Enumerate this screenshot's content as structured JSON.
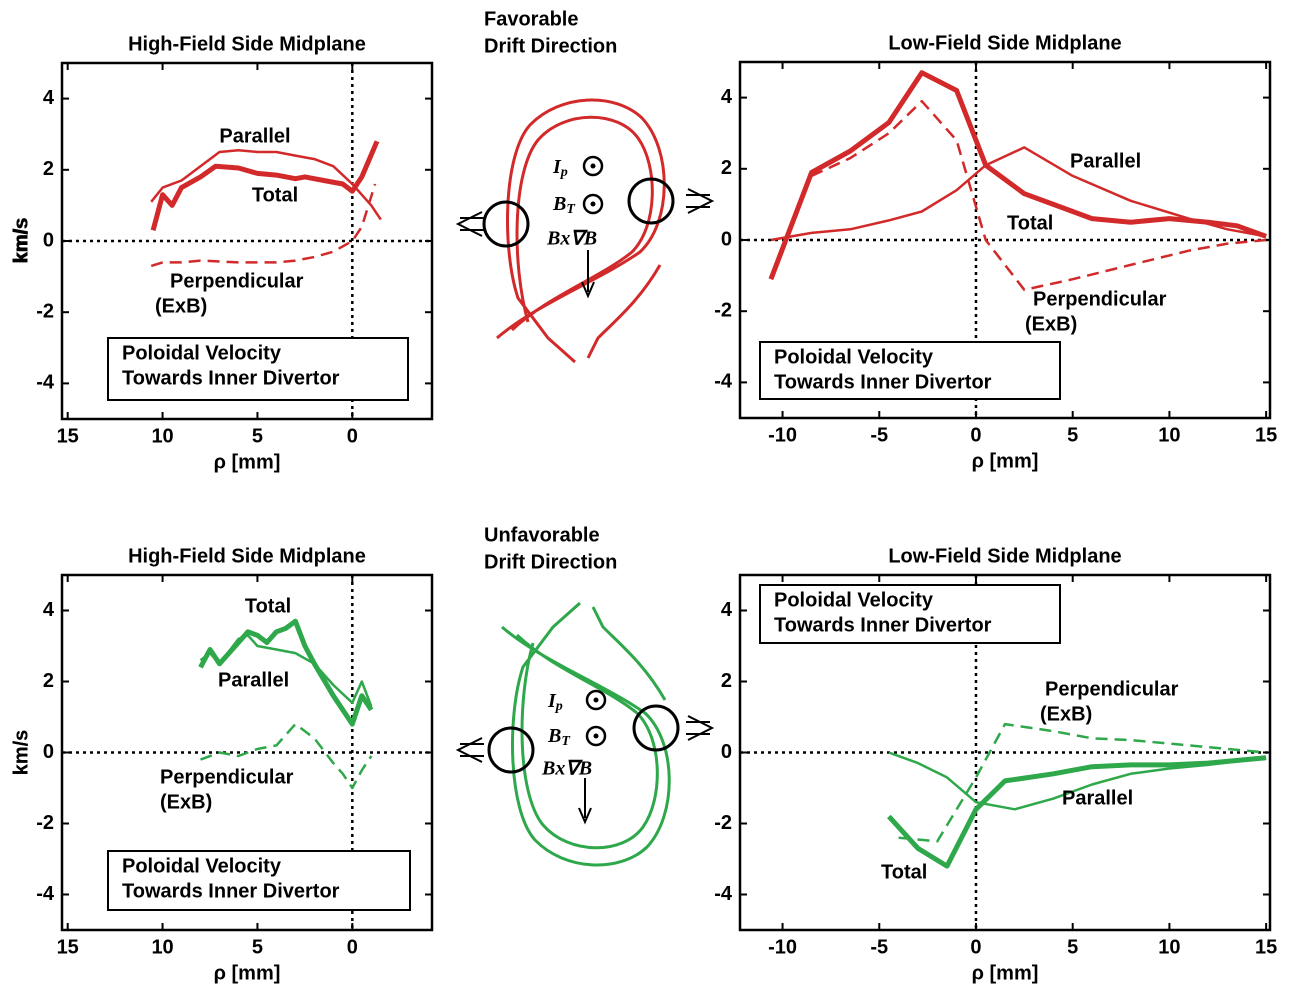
{
  "chart_data": [
    {
      "type": "line",
      "title": "High-Field Side Midplane",
      "xlabel": "ρ [mm]",
      "ylabel": "km/s",
      "xlim": [
        15.3,
        -4.2
      ],
      "ylim": [
        -5,
        5
      ],
      "xticks": [
        15,
        10,
        5,
        0
      ],
      "yticks": [
        -4,
        -2,
        0,
        2,
        4
      ],
      "zero_lines": true,
      "box": [
        "Poloidal Velocity",
        "Towards Inner Divertor"
      ],
      "series": [
        {
          "label": [
            "Parallel"
          ],
          "color": "#d22a2a",
          "width": "thin",
          "dash": false,
          "x": [
            10.6,
            10,
            9,
            8,
            7,
            6,
            5,
            4,
            3,
            2,
            1,
            0,
            -1,
            -1.5
          ],
          "values": [
            1.1,
            1.5,
            1.7,
            2.1,
            2.5,
            2.55,
            2.5,
            2.5,
            2.4,
            2.3,
            2.1,
            1.6,
            1.0,
            0.6
          ]
        },
        {
          "label": [
            "Total"
          ],
          "color": "#d22a2a",
          "width": "thick",
          "dash": false,
          "x": [
            10.5,
            10,
            9.5,
            9,
            8,
            7.2,
            6,
            5,
            4,
            3,
            2.5,
            1.5,
            0.5,
            0,
            -0.5,
            -1.3
          ],
          "values": [
            0.3,
            1.3,
            1.0,
            1.5,
            1.8,
            2.1,
            2.05,
            1.9,
            1.85,
            1.75,
            1.8,
            1.7,
            1.6,
            1.4,
            1.8,
            2.8
          ]
        },
        {
          "label": [
            "Perpendicular",
            "(ExB)"
          ],
          "color": "#d22a2a",
          "width": "thin",
          "dash": true,
          "x": [
            10.6,
            10,
            9,
            8,
            6,
            5,
            4,
            3,
            2,
            1,
            0,
            -0.5,
            -1.2
          ],
          "values": [
            -0.7,
            -0.6,
            -0.6,
            -0.55,
            -0.6,
            -0.6,
            -0.6,
            -0.55,
            -0.45,
            -0.3,
            0,
            0.4,
            1.6
          ]
        }
      ]
    },
    {
      "type": "line",
      "title": "Low-Field Side Midplane",
      "xlabel": "ρ [mm]",
      "ylabel": "km/s",
      "xlim": [
        -12.2,
        15.2
      ],
      "ylim": [
        -5,
        5
      ],
      "xticks": [
        -10,
        -5,
        0,
        5,
        10,
        15
      ],
      "yticks": [
        -4,
        -2,
        0,
        2,
        4
      ],
      "zero_lines": true,
      "box": [
        "Poloidal Velocity",
        "Towards Inner Divertor"
      ],
      "series": [
        {
          "label": [
            "Parallel"
          ],
          "color": "#d22a2a",
          "width": "thin",
          "dash": false,
          "x": [
            -10.6,
            -8.5,
            -6.5,
            -4.5,
            -2.8,
            -1,
            0.5,
            2.5,
            5,
            8,
            11,
            13,
            15
          ],
          "values": [
            0,
            0.2,
            0.3,
            0.55,
            0.8,
            1.4,
            2.1,
            2.6,
            1.8,
            1.1,
            0.6,
            0.3,
            0.1
          ]
        },
        {
          "label": [
            "Total"
          ],
          "color": "#d22a2a",
          "width": "thick",
          "dash": false,
          "x": [
            -10.6,
            -8.5,
            -6.5,
            -4.5,
            -2.8,
            -1,
            0.5,
            2.5,
            4,
            6,
            8,
            10,
            12,
            13.5,
            15
          ],
          "values": [
            -1.1,
            1.9,
            2.5,
            3.3,
            4.7,
            4.2,
            2.1,
            1.3,
            1.0,
            0.6,
            0.5,
            0.6,
            0.5,
            0.4,
            0.1
          ]
        },
        {
          "label": [
            "Perpendicular",
            "(ExB)"
          ],
          "color": "#d22a2a",
          "width": "thin",
          "dash": true,
          "x": [
            -8.5,
            -6.5,
            -4.5,
            -2.8,
            -1,
            0.5,
            2.5,
            5,
            8,
            11,
            13,
            15
          ],
          "values": [
            1.8,
            2.3,
            3.0,
            3.9,
            2.8,
            0,
            -1.4,
            -1.1,
            -0.7,
            -0.3,
            -0.1,
            0
          ]
        }
      ]
    },
    {
      "type": "line",
      "title": "High-Field Side Midplane",
      "xlabel": "ρ [mm]",
      "ylabel": "km/s",
      "xlim": [
        15.3,
        -4.2
      ],
      "ylim": [
        -5,
        5
      ],
      "xticks": [
        15,
        10,
        5,
        0
      ],
      "yticks": [
        -4,
        -2,
        0,
        2,
        4
      ],
      "zero_lines": true,
      "box": [
        "Poloidal Velocity",
        "Towards Inner Divertor"
      ],
      "series": [
        {
          "label": [
            "Total"
          ],
          "color": "#2ea84a",
          "width": "thick",
          "dash": false,
          "x": [
            8,
            7.5,
            7,
            6,
            5.5,
            5,
            4.5,
            4,
            3.5,
            3,
            2.5,
            2,
            1,
            0,
            -0.5,
            -1
          ],
          "values": [
            2.4,
            2.9,
            2.5,
            3.1,
            3.4,
            3.3,
            3.1,
            3.4,
            3.5,
            3.7,
            3.0,
            2.5,
            1.6,
            0.8,
            1.6,
            1.2
          ]
        },
        {
          "label": [
            "Parallel"
          ],
          "color": "#2ea84a",
          "width": "thin",
          "dash": false,
          "x": [
            8,
            7.5,
            7,
            6,
            5.5,
            5,
            4,
            3,
            2,
            1,
            0,
            -0.5,
            -1
          ],
          "values": [
            2.6,
            2.8,
            2.5,
            3.2,
            3.3,
            3.0,
            2.9,
            2.8,
            2.5,
            1.9,
            1.4,
            2.0,
            1.3
          ]
        },
        {
          "label": [
            "Perpendicular",
            "(ExB)"
          ],
          "color": "#2ea84a",
          "width": "thin",
          "dash": true,
          "x": [
            8,
            7,
            6,
            5,
            4,
            3,
            2,
            1,
            0.5,
            0,
            -0.5,
            -1
          ],
          "values": [
            -0.2,
            0,
            -0.1,
            0.1,
            0.2,
            0.8,
            0.4,
            -0.3,
            -0.6,
            -1.0,
            -0.5,
            -0.1
          ]
        }
      ]
    },
    {
      "type": "line",
      "title": "Low-Field Side Midplane",
      "xlabel": "ρ [mm]",
      "ylabel": "km/s",
      "xlim": [
        -12.2,
        15.2
      ],
      "ylim": [
        -5,
        5
      ],
      "xticks": [
        -10,
        -5,
        0,
        5,
        10,
        15
      ],
      "yticks": [
        -4,
        -2,
        0,
        2,
        4
      ],
      "zero_lines": true,
      "box": [
        "Poloidal Velocity",
        "Towards Inner Divertor"
      ],
      "series": [
        {
          "label": [
            "Perpendicular",
            "(ExB)"
          ],
          "color": "#2ea84a",
          "width": "thin",
          "dash": true,
          "x": [
            -4,
            -2,
            0,
            1.5,
            4,
            6,
            8,
            10,
            12,
            15
          ],
          "values": [
            -2.4,
            -2.5,
            -0.7,
            0.8,
            0.6,
            0.4,
            0.35,
            0.25,
            0.15,
            0
          ]
        },
        {
          "label": [
            "Parallel"
          ],
          "color": "#2ea84a",
          "width": "thin",
          "dash": false,
          "x": [
            -4.5,
            -3,
            -1.5,
            0,
            2,
            4,
            6,
            8,
            10,
            12,
            15
          ],
          "values": [
            0,
            -0.3,
            -0.7,
            -1.4,
            -1.6,
            -1.3,
            -0.9,
            -0.6,
            -0.45,
            -0.35,
            -0.15
          ]
        },
        {
          "label": [
            "Total"
          ],
          "color": "#2ea84a",
          "width": "thick",
          "dash": false,
          "x": [
            -4.5,
            -3,
            -1.5,
            0,
            1.5,
            4,
            6,
            8,
            10,
            12,
            15
          ],
          "values": [
            -1.8,
            -2.7,
            -3.2,
            -1.6,
            -0.8,
            -0.6,
            -0.4,
            -0.35,
            -0.35,
            -0.3,
            -0.15
          ]
        }
      ]
    }
  ],
  "diagrams": [
    {
      "title": [
        "Favorable",
        "Drift Direction"
      ],
      "current": [
        "I",
        "p"
      ],
      "field": [
        "B",
        "T"
      ],
      "drift": "Bx∇B"
    },
    {
      "title": [
        "Unfavorable",
        "Drift Direction"
      ],
      "current": [
        "I",
        "p"
      ],
      "field": [
        "B",
        "T"
      ],
      "drift": "Bx∇B"
    }
  ]
}
